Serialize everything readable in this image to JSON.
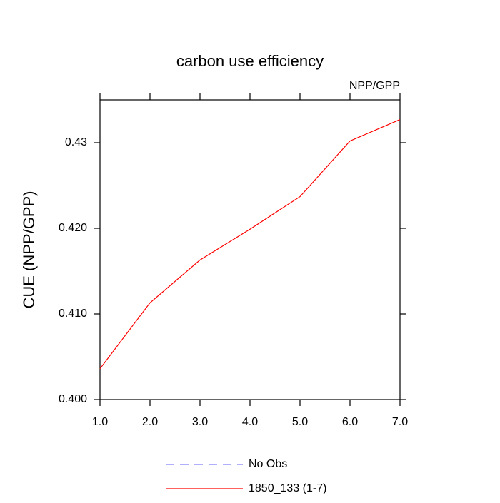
{
  "chart_data": {
    "type": "line",
    "title": "carbon use efficiency",
    "subtitle": "NPP/GPP",
    "y_label": "CUE  (NPP/GPP)",
    "x": [
      1,
      2,
      3,
      4,
      5,
      6,
      7
    ],
    "series": [
      {
        "name": "No Obs",
        "color": "#8080ff",
        "dashed": true,
        "values": [
          null,
          null,
          null,
          null,
          null,
          null,
          null
        ]
      },
      {
        "name": "1850_133 (1-7)",
        "color": "#ff0000",
        "dashed": false,
        "values": [
          0.4036,
          0.4113,
          0.4163,
          0.4199,
          0.4237,
          0.4302,
          0.4327
        ]
      }
    ],
    "xlim": [
      1,
      7
    ],
    "xticks": [
      {
        "value": 1,
        "label": "1.0"
      },
      {
        "value": 2,
        "label": "2.0"
      },
      {
        "value": 3,
        "label": "3.0"
      },
      {
        "value": 4,
        "label": "4.0"
      },
      {
        "value": 5,
        "label": "5.0"
      },
      {
        "value": 6,
        "label": "6.0"
      },
      {
        "value": 7,
        "label": "7.0"
      }
    ],
    "ylim": [
      0.4,
      0.435
    ],
    "yticks": [
      {
        "value": 0.4,
        "label": "0.400"
      },
      {
        "value": 0.41,
        "label": "0.410"
      },
      {
        "value": 0.42,
        "label": "0.420"
      },
      0.43
    ],
    "grid": false
  }
}
